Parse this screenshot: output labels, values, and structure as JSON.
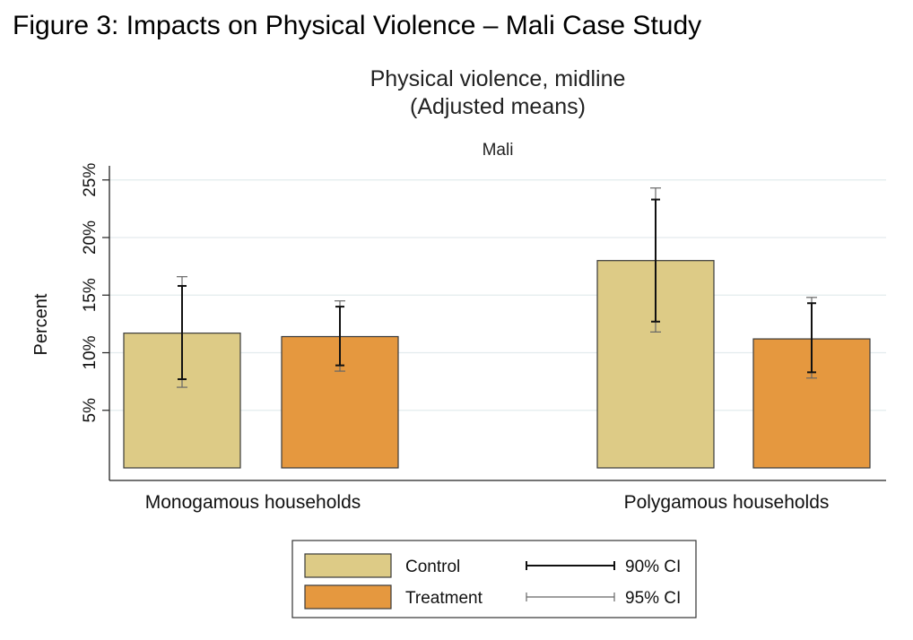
{
  "figure": {
    "caption": "Figure 3: Impacts on Physical Violence – Mali Case Study"
  },
  "chart_data": {
    "type": "bar",
    "title": "Physical violence, midline",
    "subtitle": "(Adjusted means)",
    "panel_label": "Mali",
    "ylabel": "Percent",
    "xlabel": "",
    "ylim": [
      0,
      26
    ],
    "yticks": [
      5,
      10,
      15,
      20,
      25
    ],
    "ytick_labels": [
      "5%",
      "10%",
      "15%",
      "20%",
      "25%"
    ],
    "grid": true,
    "categories": [
      "Monogamous households",
      "Polygamous households"
    ],
    "series": [
      {
        "name": "Control",
        "color": "#DDCB86",
        "values": [
          11.7,
          18.0
        ],
        "ci90": [
          [
            7.7,
            15.8
          ],
          [
            12.7,
            23.3
          ]
        ],
        "ci95": [
          [
            7.0,
            16.6
          ],
          [
            11.8,
            24.3
          ]
        ]
      },
      {
        "name": "Treatment",
        "color": "#E5983F",
        "values": [
          11.4,
          11.2
        ],
        "ci90": [
          [
            8.9,
            14.0
          ],
          [
            8.3,
            14.3
          ]
        ],
        "ci95": [
          [
            8.4,
            14.5
          ],
          [
            7.8,
            14.8
          ]
        ]
      }
    ],
    "legend": {
      "placement": "bottom",
      "items": [
        {
          "label": "Control",
          "kind": "swatch",
          "color": "#DDCB86"
        },
        {
          "label": "90% CI",
          "kind": "line-thick"
        },
        {
          "label": "Treatment",
          "kind": "swatch",
          "color": "#E5983F"
        },
        {
          "label": "95% CI",
          "kind": "line-thin"
        }
      ]
    }
  }
}
